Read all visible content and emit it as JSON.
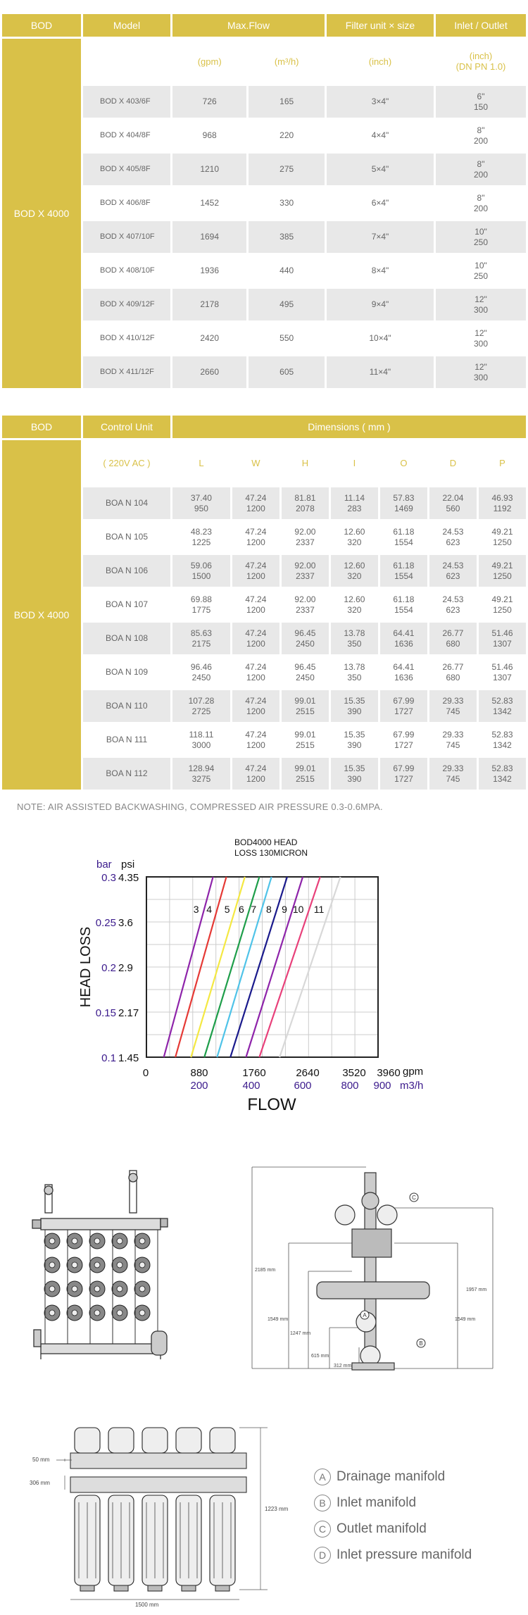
{
  "table1": {
    "headers": [
      "BOD",
      "Model",
      "Max.Flow",
      "Filter unit × size",
      "Inlet / Outlet"
    ],
    "units": [
      "(gpm)",
      "(m³/h)",
      "(inch)",
      "(inch)",
      "(DN PN 1.0)"
    ],
    "group": "BOD X 4000",
    "rows": [
      {
        "model": "BOD X 403/6F",
        "gpm": "726",
        "m3h": "165",
        "size": "3×4\"",
        "io1": "6\"",
        "io2": "150"
      },
      {
        "model": "BOD X 404/8F",
        "gpm": "968",
        "m3h": "220",
        "size": "4×4\"",
        "io1": "8\"",
        "io2": "200"
      },
      {
        "model": "BOD X 405/8F",
        "gpm": "1210",
        "m3h": "275",
        "size": "5×4\"",
        "io1": "8\"",
        "io2": "200"
      },
      {
        "model": "BOD X 406/8F",
        "gpm": "1452",
        "m3h": "330",
        "size": "6×4\"",
        "io1": "8\"",
        "io2": "200"
      },
      {
        "model": "BOD X 407/10F",
        "gpm": "1694",
        "m3h": "385",
        "size": "7×4\"",
        "io1": "10\"",
        "io2": "250"
      },
      {
        "model": "BOD X 408/10F",
        "gpm": "1936",
        "m3h": "440",
        "size": "8×4\"",
        "io1": "10\"",
        "io2": "250"
      },
      {
        "model": "BOD X 409/12F",
        "gpm": "2178",
        "m3h": "495",
        "size": "9×4\"",
        "io1": "12\"",
        "io2": "300"
      },
      {
        "model": "BOD X 410/12F",
        "gpm": "2420",
        "m3h": "550",
        "size": "10×4\"",
        "io1": "12\"",
        "io2": "300"
      },
      {
        "model": "BOD X 411/12F",
        "gpm": "2660",
        "m3h": "605",
        "size": "11×4\"",
        "io1": "12\"",
        "io2": "300"
      }
    ]
  },
  "table2": {
    "headers": [
      "BOD",
      "Control Unit",
      "Dimensions ( mm )"
    ],
    "unit_label": "( 220V AC )",
    "dim_cols": [
      "L",
      "W",
      "H",
      "I",
      "O",
      "D",
      "P"
    ],
    "group": "BOD X 4000",
    "rows": [
      {
        "unit": "BOA N 104",
        "v": [
          [
            "37.40",
            "950"
          ],
          [
            "47.24",
            "1200"
          ],
          [
            "81.81",
            "2078"
          ],
          [
            "11.14",
            "283"
          ],
          [
            "57.83",
            "1469"
          ],
          [
            "22.04",
            "560"
          ],
          [
            "46.93",
            "1192"
          ]
        ]
      },
      {
        "unit": "BOA N 105",
        "v": [
          [
            "48.23",
            "1225"
          ],
          [
            "47.24",
            "1200"
          ],
          [
            "92.00",
            "2337"
          ],
          [
            "12.60",
            "320"
          ],
          [
            "61.18",
            "1554"
          ],
          [
            "24.53",
            "623"
          ],
          [
            "49.21",
            "1250"
          ]
        ]
      },
      {
        "unit": "BOA N 106",
        "v": [
          [
            "59.06",
            "1500"
          ],
          [
            "47.24",
            "1200"
          ],
          [
            "92.00",
            "2337"
          ],
          [
            "12.60",
            "320"
          ],
          [
            "61.18",
            "1554"
          ],
          [
            "24.53",
            "623"
          ],
          [
            "49.21",
            "1250"
          ]
        ]
      },
      {
        "unit": "BOA N 107",
        "v": [
          [
            "69.88",
            "1775"
          ],
          [
            "47.24",
            "1200"
          ],
          [
            "92.00",
            "2337"
          ],
          [
            "12.60",
            "320"
          ],
          [
            "61.18",
            "1554"
          ],
          [
            "24.53",
            "623"
          ],
          [
            "49.21",
            "1250"
          ]
        ]
      },
      {
        "unit": "BOA N 108",
        "v": [
          [
            "85.63",
            "2175"
          ],
          [
            "47.24",
            "1200"
          ],
          [
            "96.45",
            "2450"
          ],
          [
            "13.78",
            "350"
          ],
          [
            "64.41",
            "1636"
          ],
          [
            "26.77",
            "680"
          ],
          [
            "51.46",
            "1307"
          ]
        ]
      },
      {
        "unit": "BOA N 109",
        "v": [
          [
            "96.46",
            "2450"
          ],
          [
            "47.24",
            "1200"
          ],
          [
            "96.45",
            "2450"
          ],
          [
            "13.78",
            "350"
          ],
          [
            "64.41",
            "1636"
          ],
          [
            "26.77",
            "680"
          ],
          [
            "51.46",
            "1307"
          ]
        ]
      },
      {
        "unit": "BOA N 110",
        "v": [
          [
            "107.28",
            "2725"
          ],
          [
            "47.24",
            "1200"
          ],
          [
            "99.01",
            "2515"
          ],
          [
            "15.35",
            "390"
          ],
          [
            "67.99",
            "1727"
          ],
          [
            "29.33",
            "745"
          ],
          [
            "52.83",
            "1342"
          ]
        ]
      },
      {
        "unit": "BOA N 111",
        "v": [
          [
            "118.11",
            "3000"
          ],
          [
            "47.24",
            "1200"
          ],
          [
            "99.01",
            "2515"
          ],
          [
            "15.35",
            "390"
          ],
          [
            "67.99",
            "1727"
          ],
          [
            "29.33",
            "745"
          ],
          [
            "52.83",
            "1342"
          ]
        ]
      },
      {
        "unit": "BOA N 112",
        "v": [
          [
            "128.94",
            "3275"
          ],
          [
            "47.24",
            "1200"
          ],
          [
            "99.01",
            "2515"
          ],
          [
            "15.35",
            "390"
          ],
          [
            "67.99",
            "1727"
          ],
          [
            "29.33",
            "745"
          ],
          [
            "52.83",
            "1342"
          ]
        ]
      }
    ]
  },
  "note": "NOTE:  AIR ASSISTED BACKWASHING, COMPRESSED AIR PRESSURE 0.3-0.6MPA.",
  "chart_data": {
    "type": "line",
    "title": "BOD4000 HEAD LOSS 130MICRON",
    "xlabel": "FLOW",
    "ylabel": "HEAD LOSS",
    "x_unit_primary": "gpm",
    "x_unit_secondary": "m3/h",
    "y_unit_primary": "bar",
    "y_unit_secondary": "psi",
    "x_ticks_gpm": [
      "0",
      "880",
      "1760",
      "2640",
      "3520",
      "3960"
    ],
    "x_ticks_m3h": [
      "200",
      "400",
      "600",
      "800",
      "900"
    ],
    "y_ticks_bar": [
      "0.3",
      "0.25",
      "0.2",
      "0.15",
      "0.1"
    ],
    "y_ticks_psi": [
      "4.35",
      "3.6",
      "2.9",
      "2.17",
      "1.45"
    ],
    "xlim": [
      0,
      4000
    ],
    "ylim": [
      0.1,
      0.3
    ],
    "series": [
      {
        "name": "3",
        "color": "#8e24aa",
        "x": [
          300,
          1150
        ],
        "y": [
          0.1,
          0.3
        ]
      },
      {
        "name": "4",
        "color": "#e53935",
        "x": [
          500,
          1380
        ],
        "y": [
          0.1,
          0.3
        ]
      },
      {
        "name": "5",
        "color": "#f4e842",
        "x": [
          770,
          1700
        ],
        "y": [
          0.1,
          0.3
        ]
      },
      {
        "name": "6",
        "color": "#1e9e4a",
        "x": [
          1000,
          1950
        ],
        "y": [
          0.1,
          0.3
        ]
      },
      {
        "name": "7",
        "color": "#4fc3e8",
        "x": [
          1220,
          2160
        ],
        "y": [
          0.1,
          0.3
        ]
      },
      {
        "name": "8",
        "color": "#1a1a8c",
        "x": [
          1450,
          2430
        ],
        "y": [
          0.1,
          0.3
        ]
      },
      {
        "name": "9",
        "color": "#8e24aa",
        "x": [
          1720,
          2700
        ],
        "y": [
          0.1,
          0.3
        ]
      },
      {
        "name": "10",
        "color": "#e8407a",
        "x": [
          1950,
          3000
        ],
        "y": [
          0.1,
          0.3
        ]
      },
      {
        "name": "11",
        "color": "#d8d8d8",
        "x": [
          2300,
          3350
        ],
        "y": [
          0.1,
          0.3
        ]
      }
    ]
  },
  "drawing_labels": {
    "front": [
      "2185 mm",
      "1957 mm",
      "1549 mm",
      "1549 mm",
      "1247 mm",
      "615 mm",
      "312 mm"
    ],
    "bottom": [
      "50 mm",
      "306 mm",
      "1223 mm",
      "1500 mm"
    ],
    "letters": [
      "A",
      "B",
      "C"
    ]
  },
  "legend": [
    {
      "letter": "A",
      "text": "Drainage manifold"
    },
    {
      "letter": "B",
      "text": "Inlet manifold"
    },
    {
      "letter": "C",
      "text": "Outlet manifold"
    },
    {
      "letter": "D",
      "text": "Inlet pressure manifold"
    }
  ]
}
